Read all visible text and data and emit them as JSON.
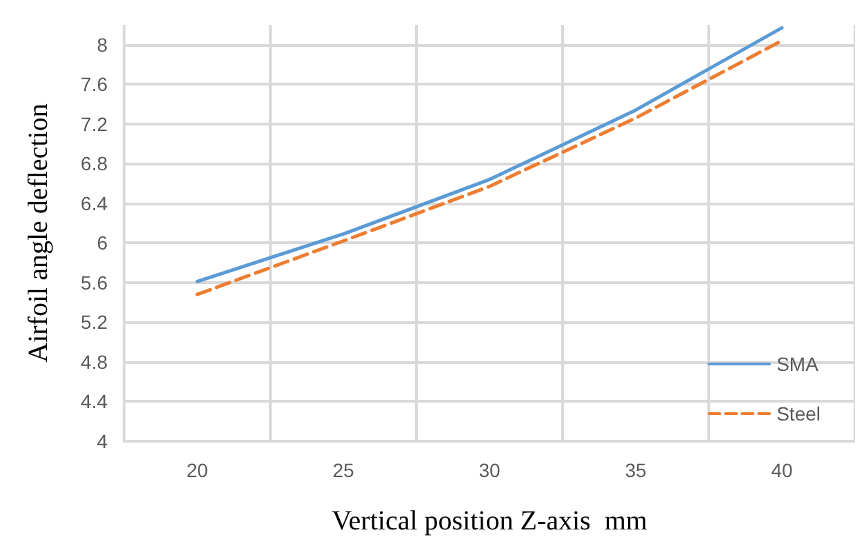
{
  "chart_data": {
    "type": "line",
    "xlabel": "Vertical position Z-axis  mm",
    "ylabel": "Airfoil angle deflection",
    "categories": [
      "20",
      "25",
      "30",
      "35",
      "40"
    ],
    "series": [
      {
        "name": "SMA",
        "color": "#5b9bd5",
        "values": [
          5.61,
          6.09,
          6.64,
          7.34,
          8.17
        ],
        "line_style": "solid"
      },
      {
        "name": "Steel",
        "color": "#ed7d31",
        "values": [
          5.48,
          6.02,
          6.57,
          7.26,
          8.04
        ],
        "line_style": "dashed"
      }
    ],
    "ylim": [
      4,
      8.2
    ],
    "yticks": [
      4,
      4.4,
      4.8,
      5.2,
      5.6,
      6,
      6.4,
      6.8,
      7.2,
      7.6,
      8
    ],
    "grid": true,
    "legend": "bottom right",
    "marker": "none"
  }
}
